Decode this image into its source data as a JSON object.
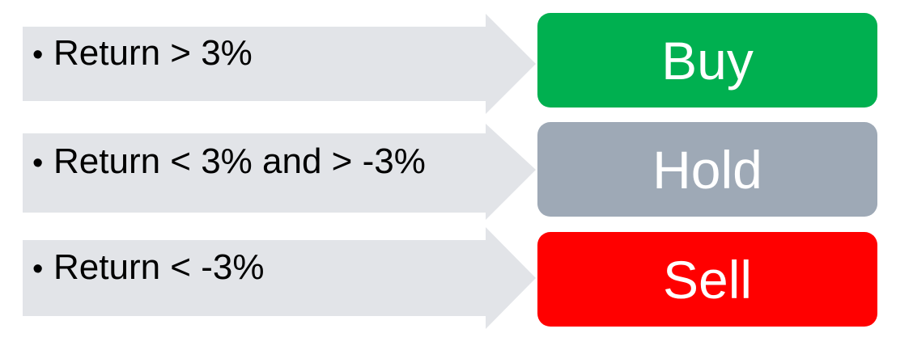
{
  "rows": [
    {
      "condition": "Return > 3%",
      "decision": "Buy",
      "decision_color": "#00b050"
    },
    {
      "condition": "Return < 3% and > -3%",
      "decision": "Hold",
      "decision_color": "#9ea9b6"
    },
    {
      "condition": "Return < -3%",
      "decision": "Sell",
      "decision_color": "#ff0000"
    }
  ],
  "arrow_color": "#e2e4e8"
}
